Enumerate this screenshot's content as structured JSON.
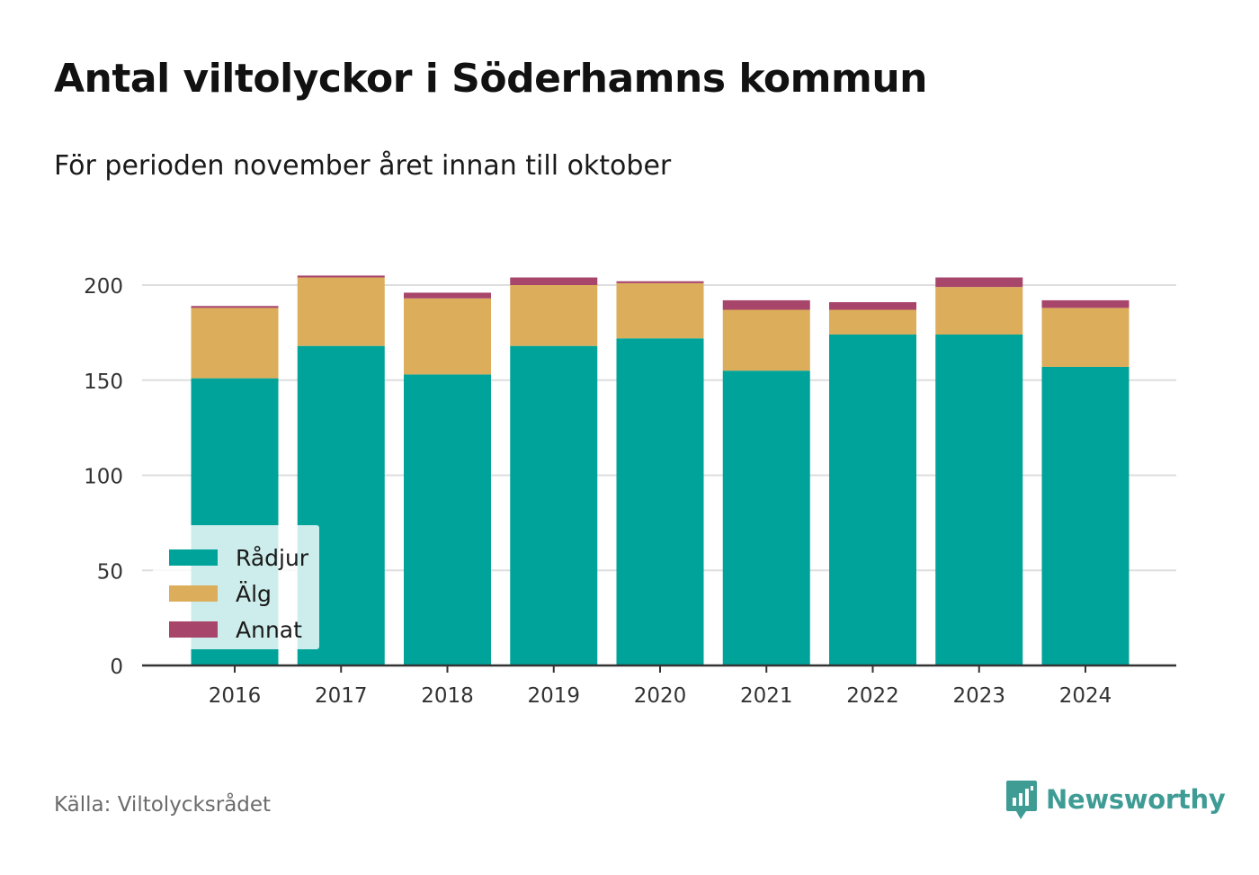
{
  "header": {
    "title": "Antal viltolyckor i Söderhamns kommun",
    "subtitle": "För perioden november året innan till oktober"
  },
  "footer": {
    "source": "Källa: Viltolycksrådet",
    "brand": "Newsworthy"
  },
  "colors": {
    "radjur": "#00a39a",
    "alg": "#dcad5a",
    "annat": "#a8456b",
    "grid": "#dedede",
    "axis": "#333333",
    "brand": "#3f9c95"
  },
  "chart_data": {
    "type": "bar",
    "stacked": true,
    "categories": [
      "2016",
      "2017",
      "2018",
      "2019",
      "2020",
      "2021",
      "2022",
      "2023",
      "2024"
    ],
    "series": [
      {
        "name": "Rådjur",
        "color": "#00a39a",
        "values": [
          151,
          168,
          153,
          168,
          172,
          155,
          174,
          174,
          157
        ]
      },
      {
        "name": "Älg",
        "color": "#dcad5a",
        "values": [
          37,
          36,
          40,
          32,
          29,
          32,
          13,
          25,
          31
        ]
      },
      {
        "name": "Annat",
        "color": "#a8456b",
        "values": [
          1,
          1,
          3,
          4,
          1,
          5,
          4,
          5,
          4
        ]
      }
    ],
    "y_ticks": [
      "0",
      "50",
      "100",
      "150",
      "200"
    ],
    "ylim": [
      0,
      210
    ],
    "grid": true,
    "legend_position": "bottom-left"
  }
}
